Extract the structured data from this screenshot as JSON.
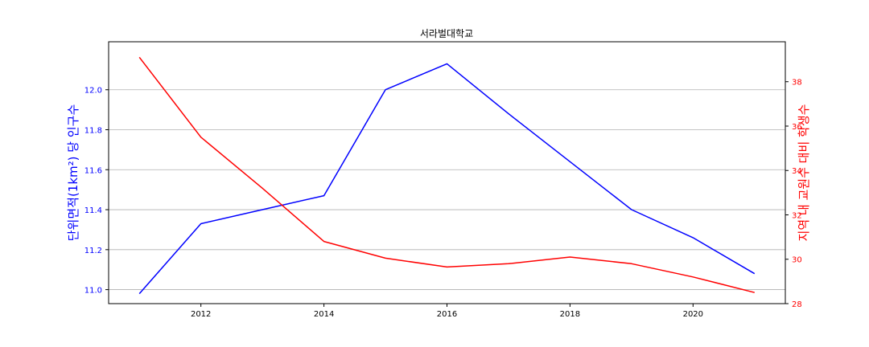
{
  "chart_data": {
    "type": "line",
    "title": "서라벌대학교",
    "xlabel": "",
    "x": [
      2011,
      2012,
      2013,
      2014,
      2015,
      2016,
      2017,
      2018,
      2019,
      2020,
      2021
    ],
    "xlim": [
      2010.5,
      2021.5
    ],
    "xticks": [
      "2012",
      "2014",
      "2016",
      "2018",
      "2020"
    ],
    "grid": "horizontal",
    "axes": {
      "left": {
        "label": "단위면적(1km²) 당 인구수",
        "color": "#0000ff",
        "ylim": [
          10.93,
          12.24
        ],
        "ticks": [
          "11.0",
          "11.2",
          "11.4",
          "11.6",
          "11.8",
          "12.0"
        ]
      },
      "right": {
        "label": "지역 내 교원수 대비 학생수",
        "color": "#ff0000",
        "ylim": [
          28,
          39.8
        ],
        "ticks": [
          "28",
          "30",
          "32",
          "34",
          "36",
          "38"
        ]
      }
    },
    "series": [
      {
        "axis": "left",
        "color": "#0000ff",
        "values": [
          10.98,
          11.33,
          11.4,
          11.47,
          12.0,
          12.13,
          11.88,
          11.64,
          11.4,
          11.26,
          11.08
        ]
      },
      {
        "axis": "right",
        "color": "#ff0000",
        "values": [
          39.1,
          35.5,
          33.2,
          30.8,
          30.05,
          29.65,
          29.8,
          30.1,
          29.8,
          29.2,
          28.5
        ]
      }
    ]
  }
}
